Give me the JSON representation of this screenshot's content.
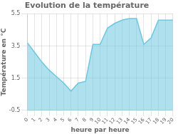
{
  "chart_data": {
    "type": "area",
    "title": "Evolution de la température",
    "xlabel": "heure par heure",
    "ylabel": "Température en °C",
    "x": [
      0,
      1,
      2,
      3,
      4,
      5,
      6,
      7,
      8,
      9,
      10,
      11,
      12,
      13,
      14,
      15,
      16,
      17,
      18,
      19,
      20
    ],
    "values": [
      3.7,
      3.1,
      2.5,
      2.0,
      1.6,
      1.2,
      0.7,
      1.2,
      1.3,
      3.6,
      3.6,
      4.6,
      4.9,
      5.1,
      5.2,
      5.2,
      3.6,
      4.0,
      5.1,
      5.1,
      5.1
    ],
    "color": "#6ec6e0",
    "xlim": [
      0,
      20
    ],
    "xticks": [
      0,
      1,
      2,
      3,
      4,
      5,
      6,
      7,
      8,
      9,
      10,
      11,
      12,
      13,
      14,
      15,
      16,
      17,
      18,
      19,
      20
    ],
    "ylim": [
      -0.5,
      5.5
    ],
    "yticks": [
      -0.5,
      1.5,
      3.5,
      5.5
    ],
    "grid": true
  }
}
